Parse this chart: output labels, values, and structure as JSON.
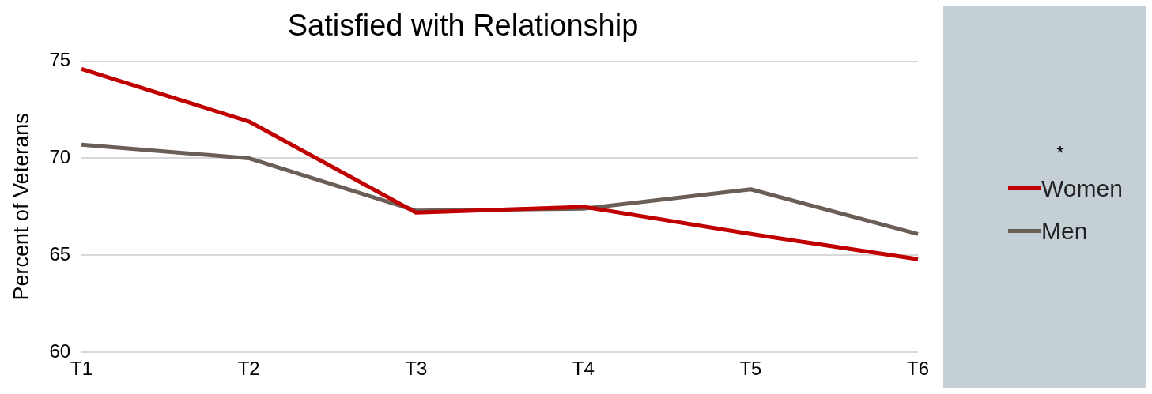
{
  "chart_data": {
    "type": "line",
    "title": "Satisfied with Relationship",
    "ylabel": "Percent of Veterans",
    "categories": [
      "T1",
      "T2",
      "T3",
      "T4",
      "T5",
      "T6"
    ],
    "series": [
      {
        "name": "Women",
        "color": "#c00000",
        "values": [
          74.6,
          71.9,
          67.2,
          67.5,
          66.1,
          64.8
        ]
      },
      {
        "name": "Men",
        "color": "#6b5e57",
        "values": [
          70.7,
          70.0,
          67.3,
          67.4,
          68.4,
          66.1
        ]
      }
    ],
    "ylim": [
      60,
      75
    ],
    "yticks": [
      60,
      65,
      70,
      75
    ],
    "grid": "y",
    "legend": "right",
    "marker": "none",
    "line_style": "solid",
    "annotations": [
      "*"
    ]
  }
}
